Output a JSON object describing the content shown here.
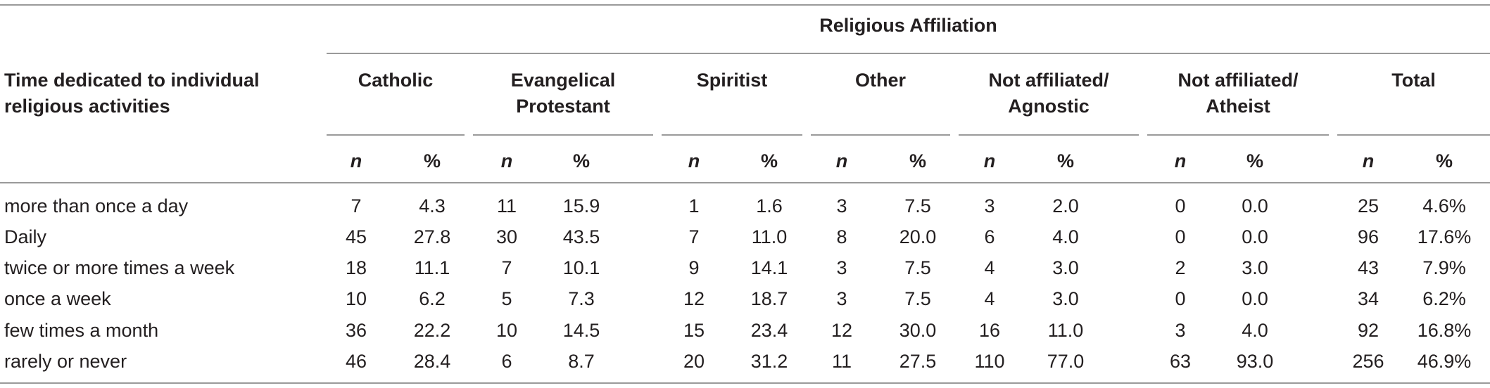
{
  "table": {
    "spanning_header": "Religious Affiliation",
    "row_header": "Time dedicated to individual religious activities",
    "groups": [
      {
        "label_line1": "Catholic",
        "label_line2": ""
      },
      {
        "label_line1": "Evangelical",
        "label_line2": "Protestant"
      },
      {
        "label_line1": "Spiritist",
        "label_line2": ""
      },
      {
        "label_line1": "Other",
        "label_line2": ""
      },
      {
        "label_line1": "Not affiliated/",
        "label_line2": "Agnostic"
      },
      {
        "label_line1": "Not affiliated/",
        "label_line2": "Atheist"
      },
      {
        "label_line1": "Total",
        "label_line2": ""
      }
    ],
    "subheaders": [
      "n",
      "%"
    ],
    "rows": [
      {
        "label": "more than once a day",
        "cells": [
          "7",
          "4.3",
          "11",
          "15.9",
          "1",
          "1.6",
          "3",
          "7.5",
          "3",
          "2.0",
          "0",
          "0.0",
          "25",
          "4.6%"
        ]
      },
      {
        "label": "Daily",
        "cells": [
          "45",
          "27.8",
          "30",
          "43.5",
          "7",
          "11.0",
          "8",
          "20.0",
          "6",
          "4.0",
          "0",
          "0.0",
          "96",
          "17.6%"
        ]
      },
      {
        "label": "twice or more times a week",
        "cells": [
          "18",
          "11.1",
          "7",
          "10.1",
          "9",
          "14.1",
          "3",
          "7.5",
          "4",
          "3.0",
          "2",
          "3.0",
          "43",
          "7.9%"
        ]
      },
      {
        "label": "once a week",
        "cells": [
          "10",
          "6.2",
          "5",
          "7.3",
          "12",
          "18.7",
          "3",
          "7.5",
          "4",
          "3.0",
          "0",
          "0.0",
          "34",
          "6.2%"
        ]
      },
      {
        "label": "few times a month",
        "cells": [
          "36",
          "22.2",
          "10",
          "14.5",
          "15",
          "23.4",
          "12",
          "30.0",
          "16",
          "11.0",
          "3",
          "4.0",
          "92",
          "16.8%"
        ]
      },
      {
        "label": "rarely or never",
        "cells": [
          "46",
          "28.4",
          "6",
          "8.7",
          "20",
          "31.2",
          "11",
          "27.5",
          "110",
          "77.0",
          "63",
          "93.0",
          "256",
          "46.9%"
        ]
      }
    ]
  }
}
